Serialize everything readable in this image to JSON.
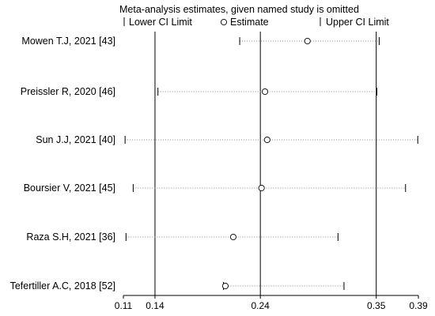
{
  "chart_data": {
    "type": "scatter",
    "title": "Meta-analysis estimates, given named study is omitted",
    "legend": {
      "placement": "top",
      "items": [
        {
          "symbol": "|",
          "label": "Lower CI Limit"
        },
        {
          "symbol": "o",
          "label": "Estimate"
        },
        {
          "symbol": "|",
          "label": "Upper CI Limit"
        }
      ]
    },
    "xlim": [
      0.11,
      0.39
    ],
    "xticks": [
      {
        "value": 0.11,
        "label": "0.11"
      },
      {
        "value": 0.14,
        "label": "0.14"
      },
      {
        "value": 0.24,
        "label": "0.24"
      },
      {
        "value": 0.35,
        "label": "0.35"
      },
      {
        "value": 0.39,
        "label": "0.39"
      }
    ],
    "reference_lines": [
      0.14,
      0.24,
      0.35
    ],
    "studies": [
      {
        "name": "Mowen T.J, 2021 [43]",
        "lower": 0.2204,
        "estimate": 0.2847,
        "upper": 0.3528
      },
      {
        "name": "Preissler R, 2020 [46]",
        "lower": 0.1428,
        "estimate": 0.2444,
        "upper": 0.3506
      },
      {
        "name": "Sun J.J, 2021 [40]",
        "lower": 0.1116,
        "estimate": 0.2465,
        "upper": 0.3894
      },
      {
        "name": "Boursier V, 2021 [45]",
        "lower": 0.1193,
        "estimate": 0.2411,
        "upper": 0.3778
      },
      {
        "name": "Raza S.H, 2021 [36]",
        "lower": 0.1125,
        "estimate": 0.2143,
        "upper": 0.3137
      },
      {
        "name": "Tefertiller A.C, 2018 [52]",
        "lower": 0.205,
        "estimate": 0.2068,
        "upper": 0.3194
      }
    ]
  }
}
